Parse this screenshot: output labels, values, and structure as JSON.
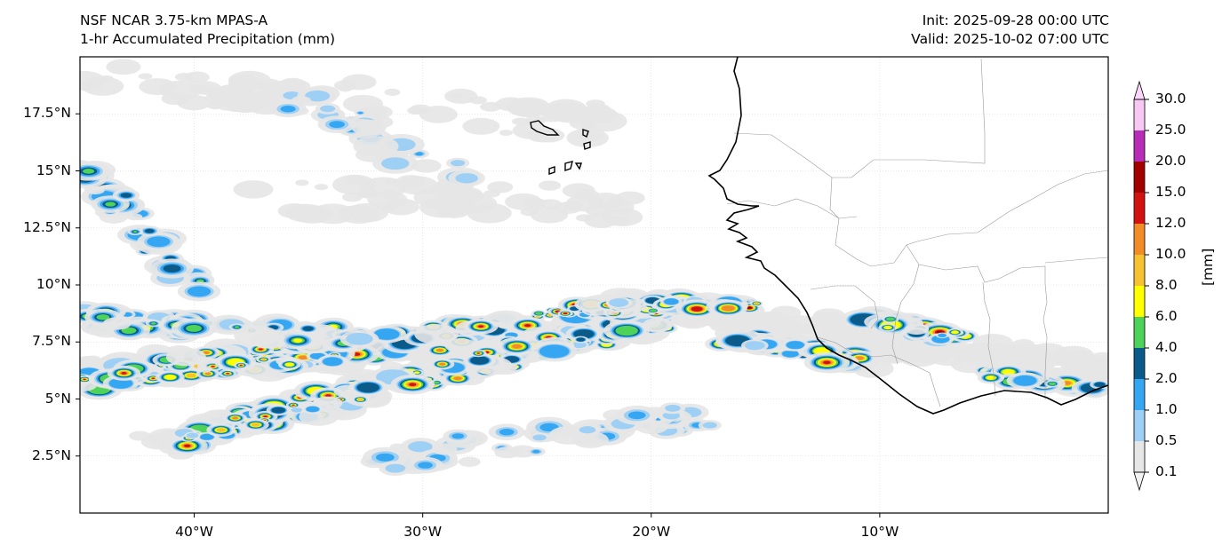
{
  "header": {
    "model": "NSF NCAR 3.75-km MPAS-A",
    "field": "1-hr Accumulated Precipitation (mm)",
    "init": "Init: 2025-09-28 00:00 UTC",
    "valid": "Valid: 2025-10-02 07:00 UTC"
  },
  "axes": {
    "y_ticks": [
      {
        "label": "17.5°N",
        "lat": 17.5
      },
      {
        "label": "15°N",
        "lat": 15
      },
      {
        "label": "12.5°N",
        "lat": 12.5
      },
      {
        "label": "10°N",
        "lat": 10
      },
      {
        "label": "7.5°N",
        "lat": 7.5
      },
      {
        "label": "5°N",
        "lat": 5
      },
      {
        "label": "2.5°N",
        "lat": 2.5
      }
    ],
    "x_ticks": [
      {
        "label": "40°W",
        "lon": -40
      },
      {
        "label": "30°W",
        "lon": -30
      },
      {
        "label": "20°W",
        "lon": -20
      },
      {
        "label": "10°W",
        "lon": -10
      }
    ],
    "lon_range": [
      -45,
      0
    ],
    "lat_range": [
      0,
      20
    ],
    "grid": true
  },
  "colorbar": {
    "units": "[mm]",
    "levels": [
      "0.1",
      "0.5",
      "1.0",
      "2.0",
      "4.0",
      "6.0",
      "8.0",
      "10.0",
      "12.0",
      "15.0",
      "20.0",
      "25.0",
      "30.0"
    ],
    "colors": [
      "#e6e6e6",
      "#9ecff5",
      "#34a6f2",
      "#0a5a8a",
      "#4ed35a",
      "#ffff00",
      "#f6c232",
      "#f28c28",
      "#d21111",
      "#a30000",
      "#b72db7",
      "#f8c8f5"
    ]
  }
}
